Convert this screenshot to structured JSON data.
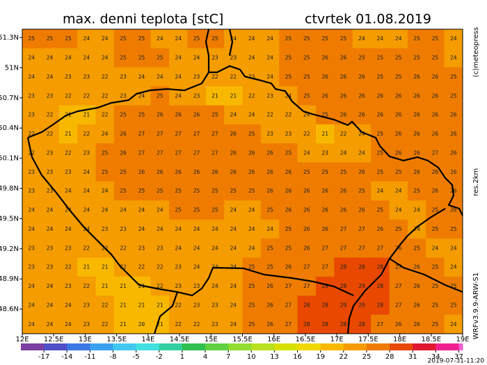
{
  "header": {
    "title": "max. denni teplota [stC]",
    "date": "ctvrtek 01.08.2019"
  },
  "side_texts": {
    "copyright": "(c)meteopress",
    "resolution": "res.2km",
    "model": "WRFv3.9.9-ARW-S1"
  },
  "timestamp": "2019-07-31-11:20",
  "lat_labels": [
    "51.3N",
    "51N",
    "50.7N",
    "50.4N",
    "50.1N",
    "49.8N",
    "49.5N",
    "49.2N",
    "48.9N",
    "48.6N"
  ],
  "lon_labels": [
    "12E",
    "12.5E",
    "13E",
    "13.5E",
    "14E",
    "14.5E",
    "15E",
    "15.5E",
    "16E",
    "16.5E",
    "17E",
    "17.5E",
    "18E",
    "18.5E",
    "19E"
  ],
  "colorbar": {
    "lim": [
      -20,
      37.5
    ],
    "ticks": [
      -17,
      -14,
      -11,
      -8,
      -5,
      -2,
      1,
      4,
      7,
      10,
      13,
      16,
      19,
      22,
      25,
      28,
      31,
      34,
      37
    ],
    "colors": [
      "#7a3fa0",
      "#5050c8",
      "#3c78e6",
      "#3aa0f0",
      "#40c8f0",
      "#40e0e0",
      "#30d0a0",
      "#30c050",
      "#60d040",
      "#90dc30",
      "#b8e020",
      "#d8e000",
      "#f0d800",
      "#f8b800",
      "#f59c00",
      "#ef7c00",
      "#e84800",
      "#e01830",
      "#f02090",
      "#f060d0"
    ]
  },
  "map": {
    "grid": [
      [
        25,
        25,
        25,
        24,
        24,
        25,
        25,
        24,
        24,
        25,
        25,
        24,
        24,
        24,
        25,
        25,
        25,
        25,
        24,
        24,
        24,
        25,
        25,
        24
      ],
      [
        24,
        24,
        24,
        24,
        24,
        25,
        25,
        25,
        24,
        24,
        23,
        23,
        24,
        24,
        25,
        25,
        26,
        26,
        25,
        25,
        25,
        25,
        25,
        24
      ],
      [
        24,
        24,
        23,
        23,
        22,
        23,
        24,
        24,
        24,
        23,
        22,
        22,
        23,
        24,
        25,
        25,
        26,
        26,
        26,
        25,
        25,
        26,
        26,
        25
      ],
      [
        23,
        23,
        22,
        22,
        22,
        23,
        24,
        25,
        24,
        23,
        21,
        21,
        22,
        23,
        24,
        25,
        26,
        26,
        26,
        26,
        26,
        26,
        26,
        25
      ],
      [
        23,
        22,
        21,
        21,
        22,
        25,
        25,
        26,
        26,
        26,
        25,
        24,
        24,
        22,
        22,
        24,
        25,
        26,
        26,
        26,
        26,
        26,
        26,
        26
      ],
      [
        22,
        22,
        21,
        22,
        24,
        26,
        27,
        27,
        27,
        27,
        27,
        26,
        25,
        23,
        23,
        22,
        21,
        22,
        24,
        25,
        26,
        26,
        26,
        26
      ],
      [
        22,
        23,
        22,
        23,
        25,
        26,
        27,
        27,
        27,
        27,
        27,
        26,
        26,
        26,
        25,
        24,
        23,
        24,
        24,
        25,
        26,
        26,
        27,
        26
      ],
      [
        23,
        23,
        23,
        24,
        25,
        25,
        26,
        26,
        26,
        26,
        26,
        26,
        26,
        26,
        26,
        25,
        25,
        25,
        26,
        25,
        25,
        26,
        26,
        26
      ],
      [
        23,
        23,
        24,
        24,
        24,
        25,
        25,
        25,
        25,
        25,
        25,
        25,
        25,
        26,
        26,
        26,
        26,
        26,
        25,
        24,
        24,
        25,
        26,
        26
      ],
      [
        24,
        24,
        24,
        24,
        24,
        24,
        24,
        24,
        25,
        25,
        25,
        24,
        24,
        25,
        26,
        26,
        26,
        26,
        26,
        25,
        24,
        24,
        25,
        26
      ],
      [
        24,
        24,
        24,
        24,
        23,
        23,
        24,
        24,
        24,
        24,
        24,
        24,
        24,
        24,
        25,
        26,
        26,
        27,
        27,
        26,
        25,
        24,
        25,
        25
      ],
      [
        23,
        23,
        23,
        22,
        22,
        22,
        23,
        23,
        24,
        24,
        24,
        24,
        24,
        25,
        25,
        26,
        27,
        27,
        27,
        27,
        26,
        25,
        24,
        24
      ],
      [
        23,
        23,
        22,
        21,
        21,
        22,
        22,
        22,
        23,
        24,
        24,
        24,
        25,
        25,
        26,
        27,
        27,
        28,
        28,
        28,
        27,
        26,
        25,
        24
      ],
      [
        24,
        24,
        23,
        22,
        21,
        21,
        21,
        22,
        23,
        23,
        24,
        24,
        25,
        26,
        27,
        27,
        28,
        28,
        29,
        28,
        27,
        26,
        25,
        25
      ],
      [
        24,
        24,
        24,
        23,
        22,
        21,
        21,
        21,
        22,
        23,
        23,
        24,
        25,
        26,
        27,
        28,
        28,
        29,
        29,
        28,
        27,
        26,
        25,
        25
      ],
      [
        24,
        24,
        24,
        23,
        22,
        21,
        20,
        21,
        22,
        22,
        23,
        24,
        25,
        26,
        27,
        28,
        28,
        28,
        28,
        27,
        26,
        26,
        25,
        24
      ]
    ]
  }
}
